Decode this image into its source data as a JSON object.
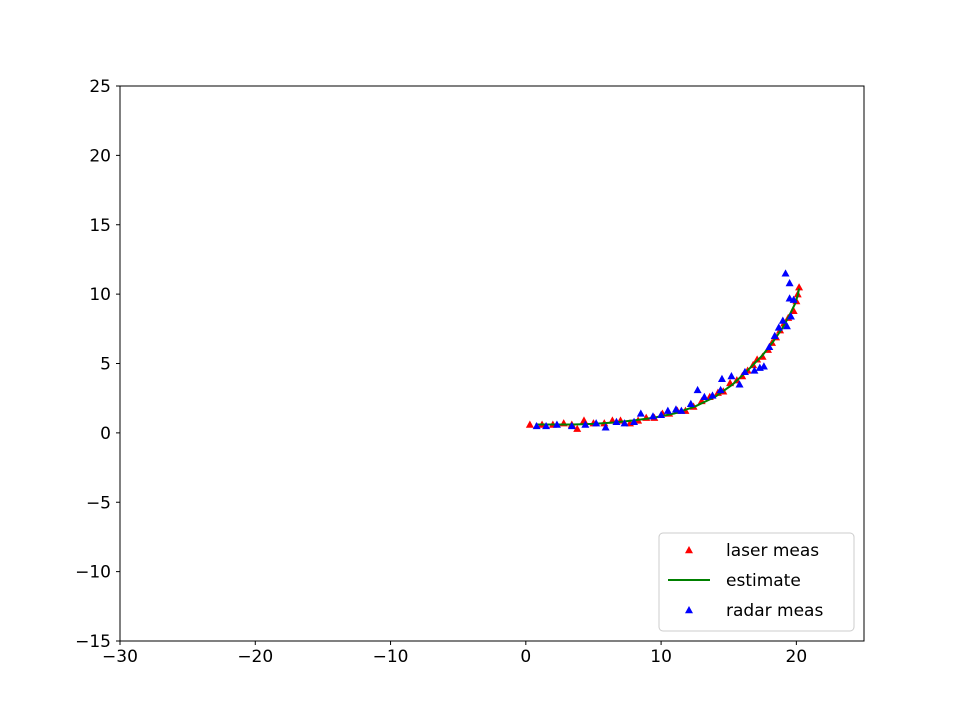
{
  "chart_data": {
    "type": "scatter",
    "title": "",
    "xlabel": "",
    "ylabel": "",
    "xlim": [
      -30,
      25
    ],
    "ylim": [
      -15,
      25
    ],
    "x_ticks": [
      -30,
      -20,
      -10,
      0,
      10,
      20
    ],
    "y_ticks": [
      -15,
      -10,
      -5,
      0,
      5,
      10,
      15,
      20,
      25
    ],
    "x_tick_labels": [
      "−30",
      "−20",
      "−10",
      "0",
      "10",
      "20"
    ],
    "y_tick_labels": [
      "−15",
      "−10",
      "−5",
      "0",
      "5",
      "10",
      "15",
      "20",
      "25"
    ],
    "grid": false,
    "legend_position": "lower-right",
    "series": [
      {
        "name": "laser meas",
        "marker": "triangle",
        "color": "#ff0000",
        "points": [
          [
            0.3,
            0.6
          ],
          [
            1.2,
            0.6
          ],
          [
            2.0,
            0.6
          ],
          [
            2.8,
            0.7
          ],
          [
            3.4,
            0.6
          ],
          [
            3.8,
            0.3
          ],
          [
            4.3,
            0.9
          ],
          [
            5.0,
            0.7
          ],
          [
            5.8,
            0.7
          ],
          [
            6.4,
            0.9
          ],
          [
            7.0,
            0.9
          ],
          [
            7.7,
            0.7
          ],
          [
            8.3,
            0.9
          ],
          [
            8.9,
            1.1
          ],
          [
            9.5,
            1.1
          ],
          [
            10.1,
            1.4
          ],
          [
            10.6,
            1.4
          ],
          [
            11.2,
            1.6
          ],
          [
            11.8,
            1.6
          ],
          [
            12.4,
            1.9
          ],
          [
            13.0,
            2.3
          ],
          [
            13.6,
            2.6
          ],
          [
            14.2,
            2.9
          ],
          [
            14.6,
            3.0
          ],
          [
            15.1,
            3.6
          ],
          [
            15.6,
            3.8
          ],
          [
            16.0,
            4.1
          ],
          [
            16.4,
            4.5
          ],
          [
            16.8,
            4.9
          ],
          [
            17.1,
            5.3
          ],
          [
            17.5,
            5.5
          ],
          [
            17.9,
            6.0
          ],
          [
            18.2,
            6.5
          ],
          [
            18.5,
            6.9
          ],
          [
            18.8,
            7.4
          ],
          [
            19.1,
            7.9
          ],
          [
            19.4,
            8.3
          ],
          [
            19.8,
            8.8
          ],
          [
            20.0,
            9.5
          ],
          [
            20.1,
            10.0
          ],
          [
            20.2,
            10.5
          ]
        ]
      },
      {
        "name": "estimate",
        "marker": "line",
        "color": "#008000",
        "points": [
          [
            0.7,
            0.6
          ],
          [
            2.0,
            0.6
          ],
          [
            3.5,
            0.6
          ],
          [
            5.0,
            0.65
          ],
          [
            6.5,
            0.75
          ],
          [
            8.0,
            0.9
          ],
          [
            9.5,
            1.1
          ],
          [
            11.0,
            1.4
          ],
          [
            12.5,
            1.9
          ],
          [
            14.0,
            2.6
          ],
          [
            15.3,
            3.5
          ],
          [
            16.5,
            4.6
          ],
          [
            17.5,
            5.6
          ],
          [
            18.3,
            6.6
          ],
          [
            19.0,
            7.6
          ],
          [
            19.5,
            8.5
          ],
          [
            19.9,
            9.3
          ],
          [
            20.1,
            9.9
          ],
          [
            20.2,
            10.4
          ]
        ]
      },
      {
        "name": "radar meas",
        "marker": "triangle",
        "color": "#0000ff",
        "points": [
          [
            0.8,
            0.5
          ],
          [
            1.5,
            0.5
          ],
          [
            2.3,
            0.6
          ],
          [
            3.4,
            0.5
          ],
          [
            4.4,
            0.6
          ],
          [
            5.2,
            0.7
          ],
          [
            5.9,
            0.4
          ],
          [
            6.7,
            0.8
          ],
          [
            7.3,
            0.7
          ],
          [
            8.0,
            0.8
          ],
          [
            8.5,
            1.4
          ],
          [
            9.4,
            1.2
          ],
          [
            10.0,
            1.3
          ],
          [
            10.5,
            1.6
          ],
          [
            11.1,
            1.7
          ],
          [
            11.5,
            1.6
          ],
          [
            12.2,
            2.1
          ],
          [
            12.7,
            3.1
          ],
          [
            13.2,
            2.6
          ],
          [
            13.8,
            2.7
          ],
          [
            14.4,
            3.1
          ],
          [
            14.5,
            3.9
          ],
          [
            15.2,
            4.1
          ],
          [
            15.8,
            3.5
          ],
          [
            16.2,
            4.4
          ],
          [
            16.9,
            4.5
          ],
          [
            17.3,
            4.7
          ],
          [
            17.6,
            4.8
          ],
          [
            18.0,
            6.2
          ],
          [
            18.4,
            7.0
          ],
          [
            18.7,
            7.6
          ],
          [
            19.0,
            8.1
          ],
          [
            19.3,
            7.7
          ],
          [
            19.5,
            9.7
          ],
          [
            19.6,
            8.4
          ],
          [
            19.2,
            11.5
          ],
          [
            19.5,
            10.8
          ],
          [
            19.8,
            9.6
          ]
        ]
      }
    ]
  }
}
